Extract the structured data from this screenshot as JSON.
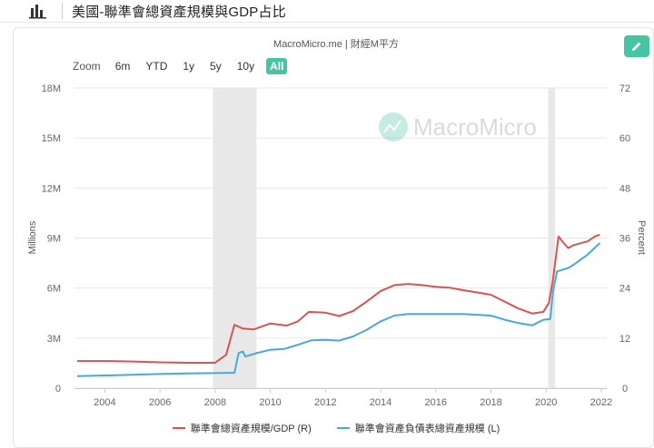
{
  "header": {
    "title": "美國-聯準會總資產規模與GDP占比"
  },
  "source_line": "MacroMicro.me | 財經M平方",
  "watermark": "MacroMicro",
  "range_selector": {
    "zoom_label": "Zoom",
    "buttons": [
      "6m",
      "YTD",
      "1y",
      "5y",
      "10y",
      "All"
    ],
    "active": "All"
  },
  "colors": {
    "gdp_ratio": "#d9534f",
    "total_assets": "#4aa8d6",
    "recession_band": "#e8e8e8",
    "accent": "#47c4a1"
  },
  "chart_data": {
    "type": "line",
    "title": "美國-聯準會總資產規模與GDP占比",
    "left_axis": {
      "label": "Millions",
      "ticks": [
        "0",
        "3M",
        "6M",
        "9M",
        "12M",
        "15M",
        "18M"
      ],
      "range": [
        0,
        18000000
      ]
    },
    "right_axis": {
      "label": "Percent",
      "ticks": [
        "0",
        "12",
        "24",
        "36",
        "48",
        "60",
        "72"
      ],
      "range": [
        0,
        72
      ]
    },
    "x_axis": {
      "ticks": [
        "2004",
        "2006",
        "2008",
        "2010",
        "2012",
        "2014",
        "2016",
        "2018",
        "2020",
        "2022"
      ],
      "range": [
        2002.9,
        2022.2
      ]
    },
    "shaded_periods": [
      [
        2007.92,
        2009.5
      ],
      [
        2020.08,
        2020.33
      ]
    ],
    "grid": true,
    "legend_position": "bottom",
    "series": [
      {
        "name": "聯準會總資產規模/GDP (R)",
        "axis": "right",
        "points": [
          [
            2003,
            6.5
          ],
          [
            2004,
            6.5
          ],
          [
            2005,
            6.4
          ],
          [
            2006,
            6.2
          ],
          [
            2007,
            6.1
          ],
          [
            2008,
            6.1
          ],
          [
            2008.4,
            8.0
          ],
          [
            2008.7,
            15.2
          ],
          [
            2009,
            14.3
          ],
          [
            2009.4,
            14.1
          ],
          [
            2010,
            15.5
          ],
          [
            2010.6,
            15.0
          ],
          [
            2011,
            16.0
          ],
          [
            2011.4,
            18.3
          ],
          [
            2012,
            18.1
          ],
          [
            2012.5,
            17.3
          ],
          [
            2013,
            18.5
          ],
          [
            2013.5,
            20.8
          ],
          [
            2014,
            23.3
          ],
          [
            2014.5,
            24.7
          ],
          [
            2015,
            25.0
          ],
          [
            2015.5,
            24.7
          ],
          [
            2016,
            24.3
          ],
          [
            2016.5,
            24.1
          ],
          [
            2017,
            23.5
          ],
          [
            2018,
            22.4
          ],
          [
            2019,
            19.1
          ],
          [
            2019.5,
            17.9
          ],
          [
            2019.9,
            18.3
          ],
          [
            2020.1,
            20.4
          ],
          [
            2020.25,
            26.0
          ],
          [
            2020.45,
            36.4
          ],
          [
            2020.6,
            35.1
          ],
          [
            2020.8,
            33.6
          ],
          [
            2021,
            34.3
          ],
          [
            2021.5,
            35.2
          ],
          [
            2021.8,
            36.5
          ],
          [
            2021.95,
            36.8
          ]
        ]
      },
      {
        "name": "聯準會資產負債表總資產規模 (L)",
        "axis": "left",
        "points": [
          [
            2003,
            720000
          ],
          [
            2004,
            760000
          ],
          [
            2005,
            800000
          ],
          [
            2006,
            850000
          ],
          [
            2007,
            880000
          ],
          [
            2008,
            900000
          ],
          [
            2008.7,
            920000
          ],
          [
            2008.85,
            2100000
          ],
          [
            2009,
            2200000
          ],
          [
            2009.1,
            1900000
          ],
          [
            2009.5,
            2100000
          ],
          [
            2010,
            2300000
          ],
          [
            2010.5,
            2350000
          ],
          [
            2011,
            2600000
          ],
          [
            2011.5,
            2870000
          ],
          [
            2012,
            2900000
          ],
          [
            2012.5,
            2850000
          ],
          [
            2013,
            3100000
          ],
          [
            2013.5,
            3500000
          ],
          [
            2014,
            4000000
          ],
          [
            2014.5,
            4350000
          ],
          [
            2015,
            4450000
          ],
          [
            2016,
            4450000
          ],
          [
            2017,
            4450000
          ],
          [
            2018,
            4350000
          ],
          [
            2018.5,
            4100000
          ],
          [
            2019,
            3900000
          ],
          [
            2019.5,
            3770000
          ],
          [
            2019.9,
            4100000
          ],
          [
            2020.15,
            4150000
          ],
          [
            2020.25,
            5800000
          ],
          [
            2020.4,
            7000000
          ],
          [
            2020.6,
            7100000
          ],
          [
            2020.8,
            7200000
          ],
          [
            2021,
            7400000
          ],
          [
            2021.5,
            8000000
          ],
          [
            2021.95,
            8700000
          ]
        ]
      }
    ]
  }
}
